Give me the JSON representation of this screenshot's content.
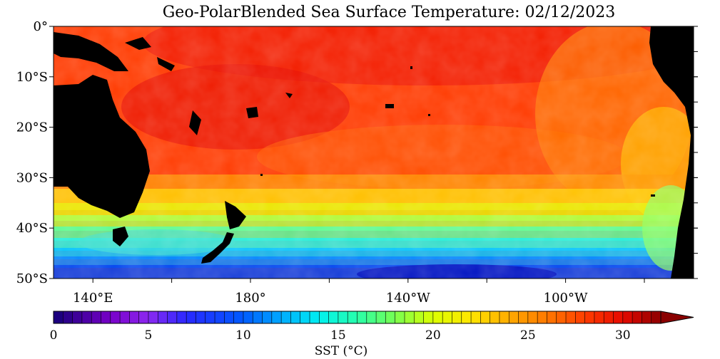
{
  "title": "Geo-PolarBlended Sea Surface Temperature: 02/12/2023",
  "lat_labels": [
    "0°",
    "10°S",
    "20°S",
    "30°S",
    "40°S",
    "50°S"
  ],
  "lon_labels": [
    "140°E",
    "180°",
    "140°W",
    "100°W"
  ],
  "colorbar": {
    "label": "SST (°C)",
    "ticks": [
      "0",
      "5",
      "10",
      "15",
      "20",
      "25",
      "30"
    ],
    "min": 0,
    "max": 32,
    "step": 0.5
  },
  "land_color": "#000000"
}
